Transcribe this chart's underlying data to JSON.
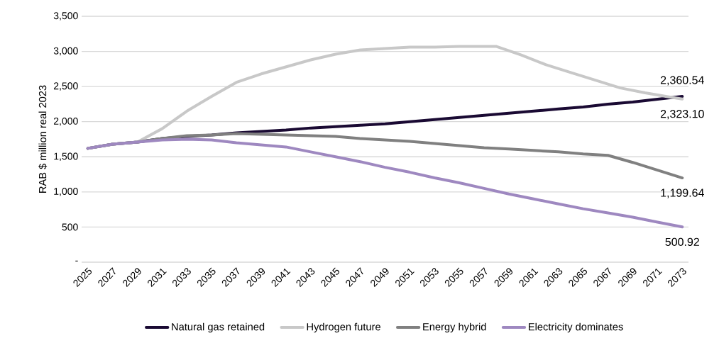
{
  "chart_data": {
    "type": "line",
    "ylabel": "RAB $ million real 2023",
    "xlim": [
      2024.5,
      2073.5
    ],
    "xticks": [
      2025,
      2027,
      2029,
      2031,
      2033,
      2035,
      2037,
      2039,
      2041,
      2043,
      2045,
      2047,
      2049,
      2051,
      2053,
      2055,
      2057,
      2059,
      2061,
      2063,
      2065,
      2067,
      2069,
      2071,
      2073
    ],
    "ylim": [
      0,
      3500
    ],
    "yticks": [
      {
        "value": 0,
        "label": "-"
      },
      500,
      {
        "value": 1000,
        "label": "1,000"
      },
      {
        "value": 1500,
        "label": "1,500"
      },
      {
        "value": 2000,
        "label": "2,000"
      },
      {
        "value": 2500,
        "label": "2,500"
      },
      {
        "value": 3000,
        "label": "3,000"
      },
      {
        "value": 3500,
        "label": "3,500"
      }
    ],
    "grid": "y",
    "legend": "bottom",
    "x": [
      2025,
      2027,
      2029,
      2031,
      2033,
      2035,
      2037,
      2039,
      2041,
      2043,
      2045,
      2047,
      2049,
      2051,
      2053,
      2055,
      2057,
      2059,
      2061,
      2063,
      2065,
      2067,
      2069,
      2071,
      2073
    ],
    "series": [
      {
        "name": "Natural gas retained",
        "color": "#1a0a33",
        "values": [
          1620,
          1680,
          1710,
          1760,
          1790,
          1810,
          1840,
          1860,
          1880,
          1910,
          1930,
          1950,
          1970,
          2000,
          2030,
          2060,
          2090,
          2120,
          2150,
          2180,
          2210,
          2250,
          2280,
          2320,
          2360.54
        ],
        "value_labels": [
          null,
          null,
          null,
          null,
          null,
          null,
          null,
          null,
          null,
          null,
          null,
          null,
          null,
          null,
          null,
          null,
          null,
          null,
          null,
          null,
          null,
          null,
          null,
          null,
          "2,360.54"
        ]
      },
      {
        "name": "Hydrogen future",
        "color": "#c8c8c8",
        "x": [
          2025,
          2027,
          2029,
          2031,
          2033,
          2035,
          2037,
          2039,
          2041,
          2043,
          2045,
          2047,
          2049,
          2051,
          2053,
          2055,
          2057,
          2058,
          2060,
          2062,
          2064,
          2066,
          2068,
          2070,
          2072,
          2073
        ],
        "values": [
          1620,
          1680,
          1710,
          1900,
          2150,
          2360,
          2560,
          2680,
          2780,
          2880,
          2960,
          3020,
          3040,
          3060,
          3060,
          3070,
          3070,
          3070,
          2950,
          2810,
          2700,
          2590,
          2480,
          2410,
          2350,
          2323.1
        ],
        "value_labels": [
          null,
          null,
          null,
          null,
          null,
          null,
          null,
          null,
          null,
          null,
          null,
          null,
          null,
          null,
          null,
          null,
          null,
          null,
          null,
          null,
          null,
          null,
          null,
          null,
          null,
          "2,323.10"
        ]
      },
      {
        "name": "Energy hybrid",
        "color": "#808080",
        "values": [
          1620,
          1680,
          1710,
          1760,
          1800,
          1810,
          1830,
          1820,
          1810,
          1800,
          1790,
          1760,
          1740,
          1720,
          1690,
          1660,
          1630,
          1610,
          1590,
          1570,
          1540,
          1520,
          1420,
          1310,
          1199.64
        ],
        "value_labels": [
          null,
          null,
          null,
          null,
          null,
          null,
          null,
          null,
          null,
          null,
          null,
          null,
          null,
          null,
          null,
          null,
          null,
          null,
          null,
          null,
          null,
          null,
          null,
          null,
          "1,199.64"
        ]
      },
      {
        "name": "Electricity dominates",
        "color": "#9e88c0",
        "values": [
          1620,
          1680,
          1710,
          1740,
          1750,
          1740,
          1700,
          1670,
          1640,
          1570,
          1500,
          1430,
          1350,
          1280,
          1200,
          1130,
          1050,
          970,
          900,
          830,
          760,
          700,
          640,
          570,
          500.92
        ],
        "value_labels": [
          null,
          null,
          null,
          null,
          null,
          null,
          null,
          null,
          null,
          null,
          null,
          null,
          null,
          null,
          null,
          null,
          null,
          null,
          null,
          null,
          null,
          null,
          null,
          null,
          "500.92"
        ]
      }
    ]
  }
}
